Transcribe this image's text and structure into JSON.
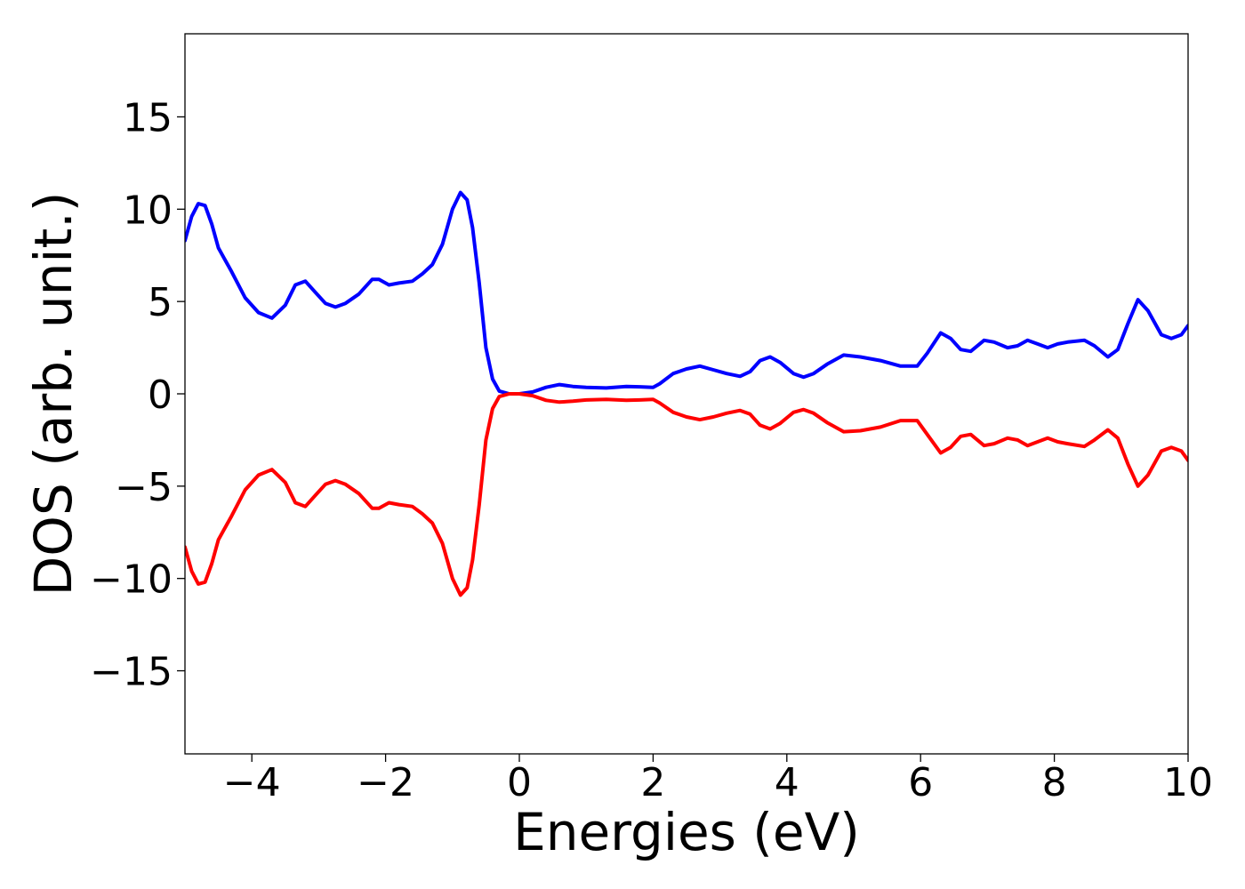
{
  "chart_data": {
    "type": "line",
    "title": "",
    "xlabel": "Energies (eV)",
    "ylabel": "DOS (arb. unit.)",
    "xlim": [
      -5,
      10
    ],
    "ylim": [
      -19.5,
      19.5
    ],
    "x_ticks": [
      -4,
      -2,
      0,
      2,
      4,
      6,
      8,
      10
    ],
    "x_tick_labels": [
      "−4",
      "−2",
      "0",
      "2",
      "4",
      "6",
      "8",
      "10"
    ],
    "y_ticks": [
      15,
      10,
      5,
      0,
      -5,
      -10,
      -15
    ],
    "y_tick_labels": [
      "15",
      "10",
      "5",
      "0",
      "−5",
      "−10",
      "−15"
    ],
    "grid": false,
    "series": [
      {
        "color": "#0000ff",
        "points": [
          [
            -5.0,
            8.3
          ],
          [
            -4.9,
            9.6
          ],
          [
            -4.8,
            10.3
          ],
          [
            -4.7,
            10.2
          ],
          [
            -4.6,
            9.2
          ],
          [
            -4.5,
            7.9
          ],
          [
            -4.3,
            6.6
          ],
          [
            -4.1,
            5.2
          ],
          [
            -3.9,
            4.4
          ],
          [
            -3.7,
            4.1
          ],
          [
            -3.5,
            4.8
          ],
          [
            -3.35,
            5.9
          ],
          [
            -3.2,
            6.1
          ],
          [
            -3.05,
            5.5
          ],
          [
            -2.9,
            4.9
          ],
          [
            -2.75,
            4.7
          ],
          [
            -2.6,
            4.9
          ],
          [
            -2.4,
            5.4
          ],
          [
            -2.2,
            6.2
          ],
          [
            -2.1,
            6.2
          ],
          [
            -1.95,
            5.9
          ],
          [
            -1.8,
            6.0
          ],
          [
            -1.6,
            6.1
          ],
          [
            -1.45,
            6.5
          ],
          [
            -1.3,
            7.0
          ],
          [
            -1.15,
            8.1
          ],
          [
            -1.0,
            10.0
          ],
          [
            -0.88,
            10.9
          ],
          [
            -0.78,
            10.5
          ],
          [
            -0.7,
            9.0
          ],
          [
            -0.6,
            6.0
          ],
          [
            -0.5,
            2.5
          ],
          [
            -0.4,
            0.8
          ],
          [
            -0.3,
            0.15
          ],
          [
            -0.15,
            0.0
          ],
          [
            0.0,
            0.0
          ],
          [
            0.2,
            0.1
          ],
          [
            0.4,
            0.35
          ],
          [
            0.6,
            0.5
          ],
          [
            0.8,
            0.4
          ],
          [
            1.0,
            0.35
          ],
          [
            1.3,
            0.32
          ],
          [
            1.6,
            0.4
          ],
          [
            1.8,
            0.38
          ],
          [
            2.0,
            0.35
          ],
          [
            2.1,
            0.55
          ],
          [
            2.3,
            1.1
          ],
          [
            2.5,
            1.35
          ],
          [
            2.7,
            1.5
          ],
          [
            2.9,
            1.3
          ],
          [
            3.1,
            1.1
          ],
          [
            3.3,
            0.95
          ],
          [
            3.45,
            1.2
          ],
          [
            3.6,
            1.8
          ],
          [
            3.75,
            2.0
          ],
          [
            3.9,
            1.7
          ],
          [
            4.1,
            1.1
          ],
          [
            4.25,
            0.9
          ],
          [
            4.4,
            1.1
          ],
          [
            4.6,
            1.6
          ],
          [
            4.85,
            2.1
          ],
          [
            5.1,
            2.0
          ],
          [
            5.4,
            1.8
          ],
          [
            5.7,
            1.5
          ],
          [
            5.95,
            1.5
          ],
          [
            6.1,
            2.2
          ],
          [
            6.3,
            3.3
          ],
          [
            6.45,
            3.0
          ],
          [
            6.6,
            2.4
          ],
          [
            6.75,
            2.3
          ],
          [
            6.95,
            2.9
          ],
          [
            7.1,
            2.8
          ],
          [
            7.3,
            2.5
          ],
          [
            7.45,
            2.6
          ],
          [
            7.6,
            2.9
          ],
          [
            7.75,
            2.7
          ],
          [
            7.9,
            2.5
          ],
          [
            8.05,
            2.7
          ],
          [
            8.2,
            2.8
          ],
          [
            8.45,
            2.9
          ],
          [
            8.6,
            2.6
          ],
          [
            8.8,
            2.0
          ],
          [
            8.95,
            2.4
          ],
          [
            9.1,
            3.8
          ],
          [
            9.25,
            5.1
          ],
          [
            9.4,
            4.5
          ],
          [
            9.6,
            3.2
          ],
          [
            9.75,
            3.0
          ],
          [
            9.9,
            3.2
          ],
          [
            10.0,
            3.7
          ]
        ]
      },
      {
        "color": "#ff0000",
        "points": [
          [
            -5.0,
            -8.3
          ],
          [
            -4.9,
            -9.6
          ],
          [
            -4.8,
            -10.3
          ],
          [
            -4.7,
            -10.2
          ],
          [
            -4.6,
            -9.2
          ],
          [
            -4.5,
            -7.9
          ],
          [
            -4.3,
            -6.6
          ],
          [
            -4.1,
            -5.2
          ],
          [
            -3.9,
            -4.4
          ],
          [
            -3.7,
            -4.1
          ],
          [
            -3.5,
            -4.8
          ],
          [
            -3.35,
            -5.9
          ],
          [
            -3.2,
            -6.1
          ],
          [
            -3.05,
            -5.5
          ],
          [
            -2.9,
            -4.9
          ],
          [
            -2.75,
            -4.7
          ],
          [
            -2.6,
            -4.9
          ],
          [
            -2.4,
            -5.4
          ],
          [
            -2.2,
            -6.2
          ],
          [
            -2.1,
            -6.2
          ],
          [
            -1.95,
            -5.9
          ],
          [
            -1.8,
            -6.0
          ],
          [
            -1.6,
            -6.1
          ],
          [
            -1.45,
            -6.5
          ],
          [
            -1.3,
            -7.0
          ],
          [
            -1.15,
            -8.1
          ],
          [
            -1.0,
            -10.0
          ],
          [
            -0.88,
            -10.9
          ],
          [
            -0.78,
            -10.5
          ],
          [
            -0.7,
            -9.0
          ],
          [
            -0.6,
            -6.0
          ],
          [
            -0.5,
            -2.5
          ],
          [
            -0.4,
            -0.8
          ],
          [
            -0.3,
            -0.15
          ],
          [
            -0.15,
            0.0
          ],
          [
            0.0,
            0.0
          ],
          [
            0.2,
            -0.1
          ],
          [
            0.4,
            -0.35
          ],
          [
            0.6,
            -0.45
          ],
          [
            0.8,
            -0.4
          ],
          [
            1.0,
            -0.33
          ],
          [
            1.3,
            -0.3
          ],
          [
            1.6,
            -0.35
          ],
          [
            1.8,
            -0.33
          ],
          [
            2.0,
            -0.3
          ],
          [
            2.1,
            -0.5
          ],
          [
            2.3,
            -1.0
          ],
          [
            2.5,
            -1.25
          ],
          [
            2.7,
            -1.4
          ],
          [
            2.9,
            -1.25
          ],
          [
            3.1,
            -1.05
          ],
          [
            3.3,
            -0.9
          ],
          [
            3.45,
            -1.1
          ],
          [
            3.6,
            -1.7
          ],
          [
            3.75,
            -1.9
          ],
          [
            3.9,
            -1.6
          ],
          [
            4.1,
            -1.0
          ],
          [
            4.25,
            -0.85
          ],
          [
            4.4,
            -1.05
          ],
          [
            4.6,
            -1.55
          ],
          [
            4.85,
            -2.05
          ],
          [
            5.1,
            -2.0
          ],
          [
            5.4,
            -1.8
          ],
          [
            5.7,
            -1.45
          ],
          [
            5.95,
            -1.45
          ],
          [
            6.1,
            -2.2
          ],
          [
            6.3,
            -3.2
          ],
          [
            6.45,
            -2.9
          ],
          [
            6.6,
            -2.3
          ],
          [
            6.75,
            -2.2
          ],
          [
            6.95,
            -2.8
          ],
          [
            7.1,
            -2.7
          ],
          [
            7.3,
            -2.4
          ],
          [
            7.45,
            -2.5
          ],
          [
            7.6,
            -2.8
          ],
          [
            7.75,
            -2.6
          ],
          [
            7.9,
            -2.4
          ],
          [
            8.05,
            -2.6
          ],
          [
            8.2,
            -2.7
          ],
          [
            8.45,
            -2.85
          ],
          [
            8.6,
            -2.5
          ],
          [
            8.8,
            -1.95
          ],
          [
            8.95,
            -2.4
          ],
          [
            9.1,
            -3.8
          ],
          [
            9.25,
            -5.0
          ],
          [
            9.4,
            -4.4
          ],
          [
            9.6,
            -3.1
          ],
          [
            9.75,
            -2.9
          ],
          [
            9.9,
            -3.1
          ],
          [
            10.0,
            -3.6
          ]
        ]
      }
    ]
  }
}
